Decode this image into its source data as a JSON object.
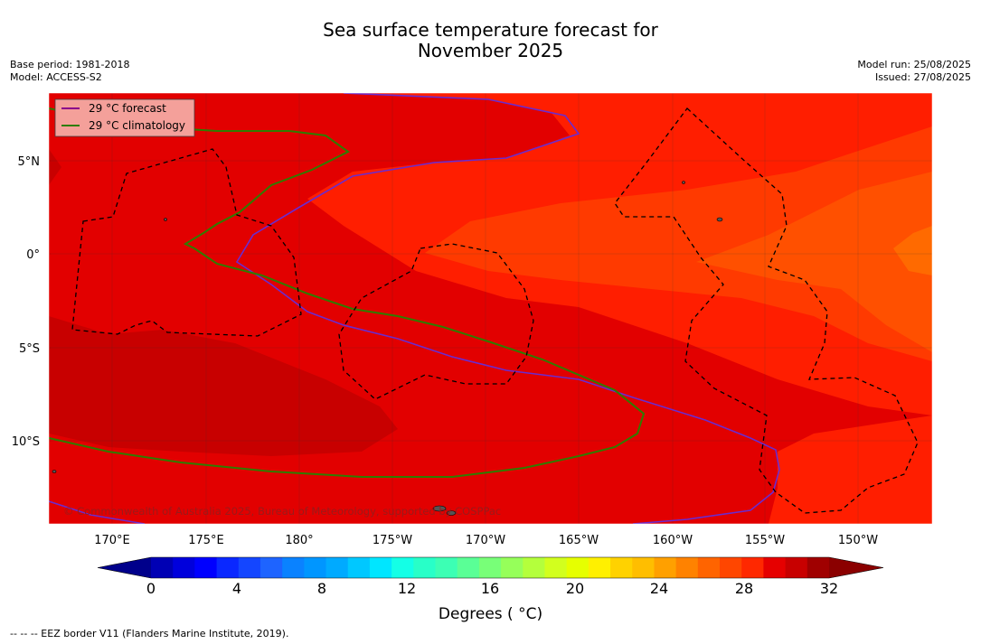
{
  "title_line1": "Sea surface temperature forecast for",
  "title_line2": "November 2025",
  "base_period": "Base period: 1981-2018",
  "model": "Model: ACCESS-S2",
  "model_run": "Model run: 25/08/2025",
  "issued": "Issued: 27/08/2025",
  "legend": {
    "forecast": "29 °C  forecast",
    "climatology": "29 °C  climatology",
    "forecast_color": "#8b008b",
    "climatology_color": "#2e7d00"
  },
  "copyright": "© Commonwealth of Australia 2025, Bureau of Meteorology, supported by COSPPac",
  "lon_labels": [
    "170°E",
    "175°E",
    "180°",
    "175°W",
    "170°W",
    "165°W",
    "160°W",
    "155°W",
    "150°W"
  ],
  "lat_labels": [
    "5°N",
    "0°",
    "5°S",
    "10°S"
  ],
  "colorbar": {
    "ticks": [
      "0",
      "4",
      "8",
      "12",
      "16",
      "20",
      "24",
      "28",
      "32"
    ],
    "title": "Degrees ( °C)",
    "colors": [
      "#00008b",
      "#0000b4",
      "#0000dc",
      "#0000ff",
      "#0a28ff",
      "#1446ff",
      "#1e64ff",
      "#0a82ff",
      "#0096ff",
      "#00aaff",
      "#00c8ff",
      "#00e6ff",
      "#14ffe6",
      "#28ffc8",
      "#3cffb4",
      "#5aff96",
      "#78ff78",
      "#96ff5a",
      "#b4ff3c",
      "#d2ff1e",
      "#e6ff00",
      "#fff000",
      "#ffd200",
      "#ffbe00",
      "#ffa000",
      "#ff8200",
      "#ff6400",
      "#ff4600",
      "#ff2800",
      "#e60000",
      "#c80000",
      "#a00000",
      "#8b0000"
    ]
  },
  "footer": "--  --  -- EEZ border V11 (Flanders Marine Institute, 2019)."
}
